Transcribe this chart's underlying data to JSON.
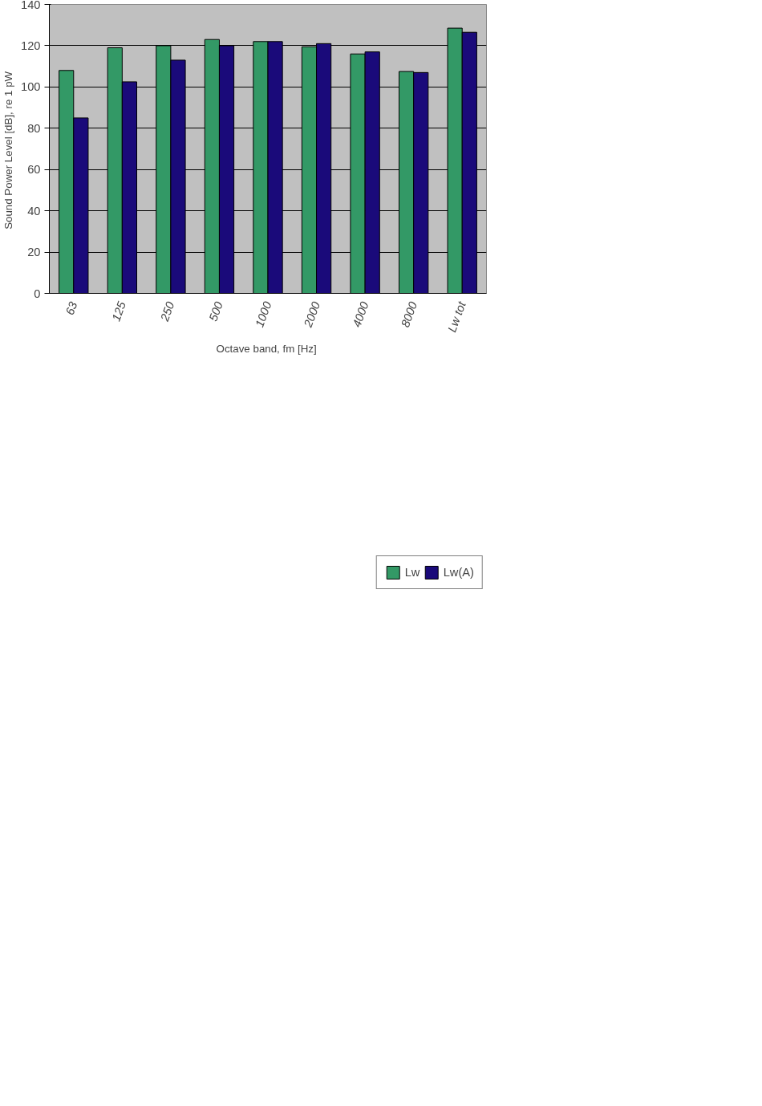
{
  "chart_data": {
    "type": "bar",
    "xlabel": "Octave band,  fm [Hz]",
    "ylabel": "Sound Power Level [dB],  re 1 pW",
    "categories": [
      "63",
      "125",
      "250",
      "500",
      "1000",
      "2000",
      "4000",
      "8000",
      "Lw tot"
    ],
    "series": [
      {
        "name": "Lw",
        "color": "#339966",
        "values": [
          108,
          119,
          120,
          123,
          122,
          119.5,
          116,
          107.5,
          128.5
        ]
      },
      {
        "name": "Lw(A)",
        "color": "#1a0a7a",
        "values": [
          85,
          102.5,
          113,
          120,
          122,
          121,
          117,
          107,
          126.5
        ]
      }
    ],
    "ylim": [
      0,
      140
    ],
    "yticks": [
      0,
      20,
      40,
      60,
      80,
      100,
      120,
      140
    ],
    "grid": "y",
    "legend": "bottom right"
  }
}
